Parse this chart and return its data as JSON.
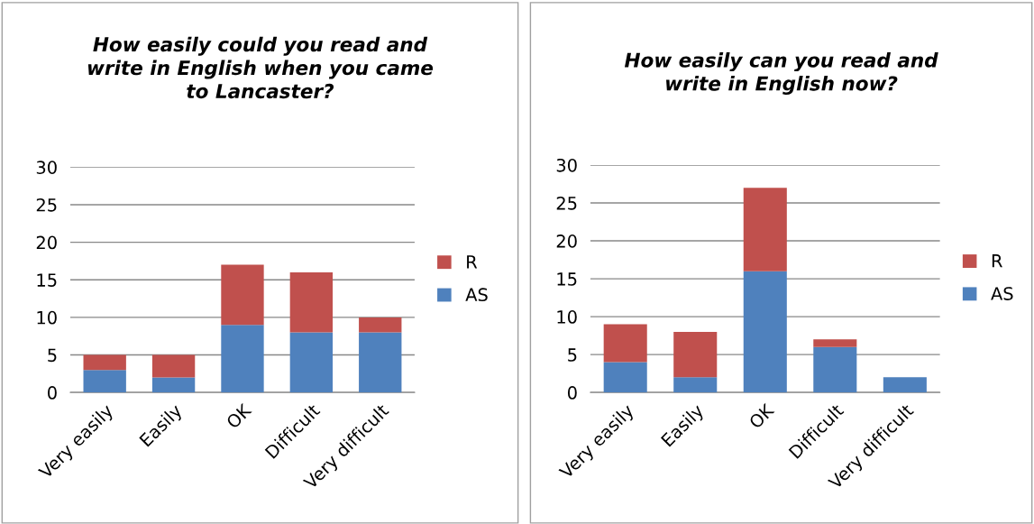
{
  "chart_data": [
    {
      "type": "bar",
      "stacked": true,
      "title": "How easily could you read and\nwrite in English when you came\nto Lancaster?",
      "categories": [
        "Very easily",
        "Easily",
        "OK",
        "Difficult",
        "Very difficult"
      ],
      "series": [
        {
          "name": "AS",
          "color": "#4f81bd",
          "values": [
            3,
            2,
            9,
            8,
            8
          ]
        },
        {
          "name": "R",
          "color": "#c0504d",
          "values": [
            2,
            3,
            8,
            8,
            2
          ]
        }
      ],
      "ylim": [
        0,
        30
      ],
      "yticks": [
        0,
        5,
        10,
        15,
        20,
        25,
        30
      ],
      "grid": "y",
      "legend": "right"
    },
    {
      "type": "bar",
      "stacked": true,
      "title": "How easily can you read and\nwrite in English now?",
      "categories": [
        "Very easily",
        "Easily",
        "OK",
        "Difficult",
        "Very difficult"
      ],
      "series": [
        {
          "name": "AS",
          "color": "#4f81bd",
          "values": [
            4,
            2,
            16,
            6,
            2
          ]
        },
        {
          "name": "R",
          "color": "#c0504d",
          "values": [
            5,
            6,
            11,
            1,
            0
          ]
        }
      ],
      "ylim": [
        0,
        30
      ],
      "yticks": [
        0,
        5,
        10,
        15,
        20,
        25,
        30
      ],
      "grid": "y",
      "legend": "right"
    }
  ]
}
